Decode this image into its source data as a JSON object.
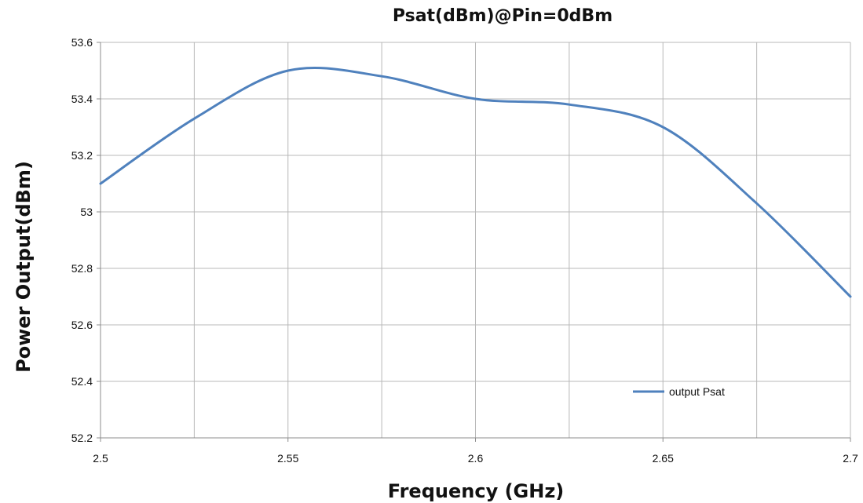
{
  "chart_data": {
    "type": "line",
    "title": "Psat(dBm)@Pin=0dBm",
    "xlabel": "Frequency (GHz)",
    "ylabel": "Power Output(dBm)",
    "xlim": [
      2.5,
      2.7
    ],
    "ylim": [
      52.2,
      53.6
    ],
    "x_ticks": [
      "2.5",
      "2.55",
      "2.6",
      "2.65",
      "2.7"
    ],
    "y_ticks": [
      "52.2",
      "52.4",
      "52.6",
      "52.8",
      "53",
      "53.2",
      "53.4",
      "53.6"
    ],
    "grid": true,
    "legend_position": "bottom-right",
    "series": [
      {
        "name": "output Psat",
        "color": "#4F81BD",
        "x": [
          2.5,
          2.525,
          2.55,
          2.575,
          2.6,
          2.625,
          2.65,
          2.675,
          2.7
        ],
        "y": [
          53.1,
          53.33,
          53.5,
          53.48,
          53.4,
          53.38,
          53.3,
          53.03,
          52.7
        ]
      }
    ]
  }
}
